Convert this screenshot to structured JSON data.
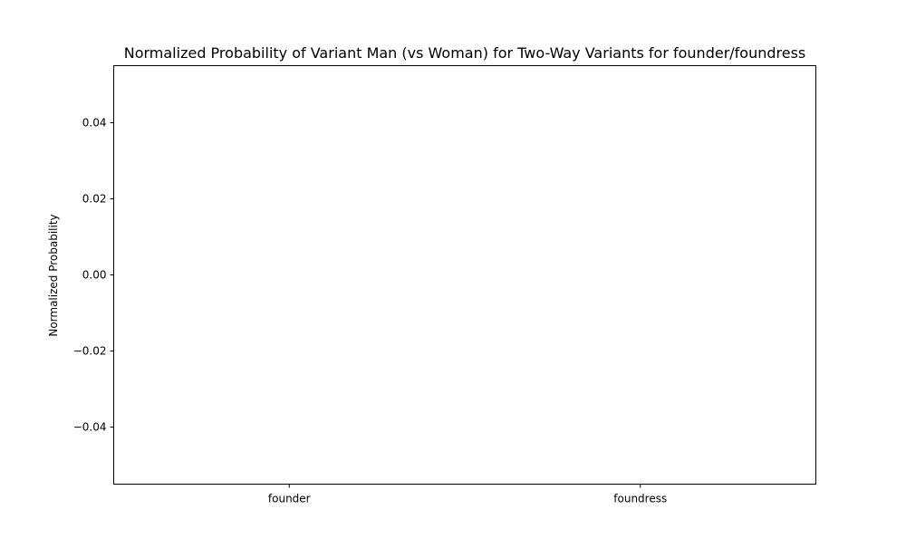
{
  "chart_data": {
    "type": "bar",
    "title": "Normalized Probability of Variant Man (vs Woman) for Two-Way Variants for founder/foundress",
    "xlabel": "",
    "ylabel": "Normalized Probability",
    "categories": [
      "founder",
      "foundress"
    ],
    "values": [
      0,
      0
    ],
    "ylim": [
      -0.055,
      0.055
    ],
    "yticks": [
      0.04,
      0.02,
      0.0,
      -0.02,
      -0.04
    ],
    "ytick_labels": [
      "0.04",
      "0.02",
      "0.00",
      "−0.02",
      "−0.04"
    ],
    "grid": false,
    "legend": "none"
  }
}
